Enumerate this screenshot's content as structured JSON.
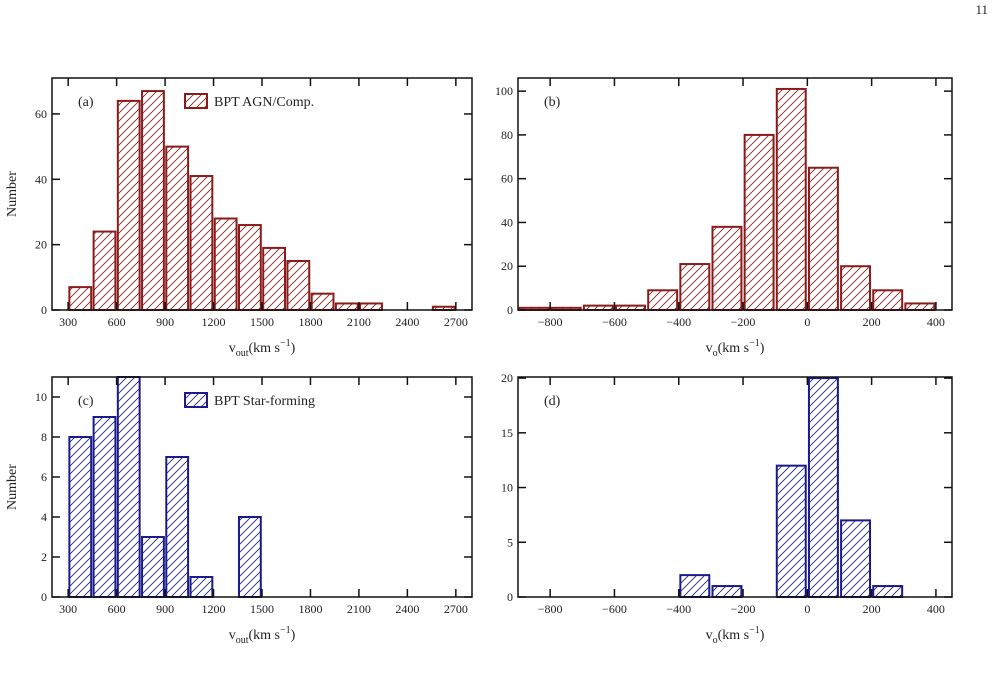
{
  "page_number": "11",
  "chart_data": [
    {
      "type": "histogram",
      "panel_label": "(a)",
      "ylabel": "Number",
      "xlabel": {
        "main": "v",
        "sub": "out",
        "unit": "(km s",
        "sup": "−1",
        "end": ")"
      },
      "bins": [
        300,
        450,
        600,
        750,
        900,
        1050,
        1200,
        1350,
        1500,
        1650,
        1800,
        1950,
        2100,
        2250,
        2400,
        2550,
        2700
      ],
      "series": [
        {
          "name": "BPT AGN/Comp.",
          "color": "#8b1a1a",
          "values": [
            7,
            24,
            64,
            67,
            50,
            41,
            28,
            26,
            19,
            15,
            5,
            2,
            2,
            0,
            0,
            1
          ]
        }
      ],
      "xlim": [
        200,
        2800
      ],
      "xticks": [
        300,
        600,
        900,
        1200,
        1500,
        1800,
        2100,
        2400,
        2700
      ],
      "ylim": [
        0,
        71
      ],
      "yticks": [
        0,
        20,
        40,
        60
      ]
    },
    {
      "type": "histogram",
      "panel_label": "(b)",
      "xlabel": {
        "main": "v",
        "sub": "o",
        "unit": "(km s",
        "sup": "−1",
        "end": ")"
      },
      "bins": [
        -900,
        -800,
        -700,
        -600,
        -500,
        -400,
        -300,
        -200,
        -100,
        0,
        100,
        200,
        300,
        400
      ],
      "series": [
        {
          "color": "#8b1a1a",
          "values": [
            1,
            1,
            2,
            2,
            9,
            21,
            38,
            80,
            101,
            65,
            20,
            9,
            3
          ]
        }
      ],
      "xlim": [
        -900,
        450
      ],
      "xticks": [
        {
          "value": -800,
          "label": "−800"
        },
        {
          "value": -600,
          "label": "−600"
        },
        {
          "value": -400,
          "label": "−400"
        },
        {
          "value": -200,
          "label": "−200"
        },
        0,
        200,
        400
      ],
      "ylim": [
        0,
        106
      ],
      "yticks": [
        0,
        20,
        40,
        60,
        80,
        100
      ]
    },
    {
      "type": "histogram",
      "panel_label": "(c)",
      "ylabel": "Number",
      "xlabel": {
        "main": "v",
        "sub": "out",
        "unit": "(km s",
        "sup": "−1",
        "end": ")"
      },
      "bins": [
        300,
        450,
        600,
        750,
        900,
        1050,
        1200,
        1350,
        1500
      ],
      "series": [
        {
          "name": "BPT Star-forming",
          "color": "#1a1a8b",
          "values": [
            8,
            9,
            11,
            3,
            7,
            1,
            0,
            4
          ]
        }
      ],
      "xlim": [
        200,
        2800
      ],
      "xticks": [
        300,
        600,
        900,
        1200,
        1500,
        1800,
        2100,
        2400,
        2700
      ],
      "ylim": [
        0,
        11
      ],
      "yticks": [
        0,
        2,
        4,
        6,
        8,
        10
      ]
    },
    {
      "type": "histogram",
      "panel_label": "(d)",
      "xlabel": {
        "main": "v",
        "sub": "o",
        "unit": "(km s",
        "sup": "−1",
        "end": ")"
      },
      "bins": [
        -400,
        -300,
        -200,
        -100,
        0,
        100,
        200,
        300
      ],
      "series": [
        {
          "color": "#1a1a8b",
          "values": [
            2,
            1,
            0,
            12,
            20,
            7,
            1
          ]
        }
      ],
      "xlim": [
        -900,
        450
      ],
      "xticks": [
        {
          "value": -800,
          "label": "−800"
        },
        {
          "value": -600,
          "label": "−600"
        },
        {
          "value": -400,
          "label": "−400"
        },
        {
          "value": -200,
          "label": "−200"
        },
        0,
        200,
        400
      ],
      "ylim": [
        0,
        20.1
      ],
      "yticks": [
        0,
        5,
        10,
        15,
        20
      ]
    }
  ]
}
